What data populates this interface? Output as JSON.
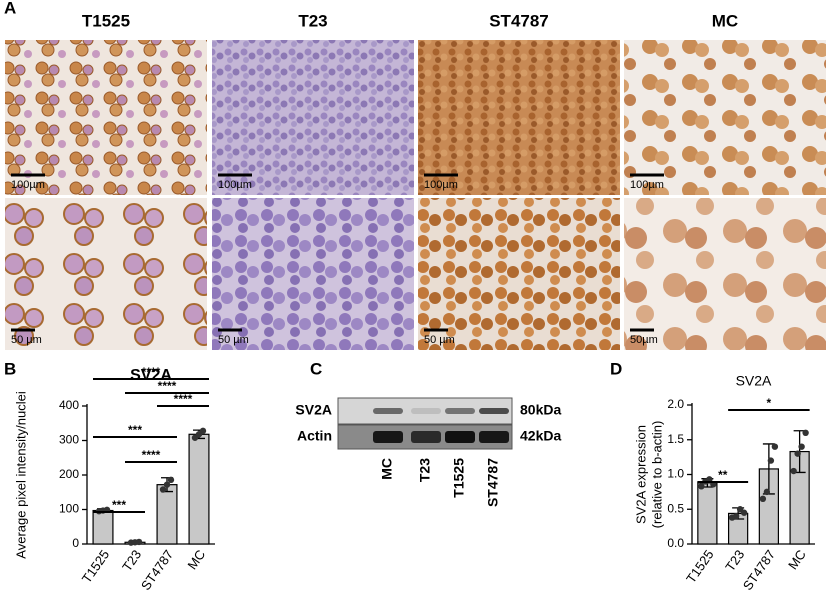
{
  "panel_labels": [
    "A",
    "B",
    "C",
    "D"
  ],
  "images": {
    "columns": [
      "T1525",
      "T23",
      "ST4787",
      "MC"
    ],
    "scale_bars": [
      [
        "100µm",
        "100µm",
        "100µm",
        "100µm"
      ],
      [
        "50 µm",
        "50 µm",
        "50 µm",
        "50µm"
      ]
    ]
  },
  "blot": {
    "rows": [
      {
        "name": "SV2A",
        "size": "80kDa"
      },
      {
        "name": "Actin",
        "size": "42kDa"
      }
    ],
    "lanes": [
      "MC",
      "T23",
      "T1525",
      "ST4787"
    ]
  },
  "chart_data": [
    {
      "type": "bar",
      "title": "SV2A",
      "ylabel": [
        "Average pixel intensity/nuclei"
      ],
      "categories": [
        "T1525",
        "T23",
        "ST4787",
        "MC"
      ],
      "values": [
        97,
        5,
        172,
        318
      ],
      "errors": [
        5,
        2,
        20,
        12
      ],
      "points": [
        [
          95,
          97,
          99
        ],
        [
          4,
          5,
          6
        ],
        [
          158,
          172,
          186
        ],
        [
          308,
          318,
          328
        ]
      ],
      "color": "#c8c8c8",
      "ylim": [
        0,
        400
      ],
      "yticks": [
        0,
        100,
        200,
        300,
        400
      ],
      "significance": [
        {
          "between": [
            "T1525",
            "T23"
          ],
          "label": "***"
        },
        {
          "between": [
            "T23",
            "ST4787"
          ],
          "label": "****"
        },
        {
          "between": [
            "ST4787",
            "MC"
          ],
          "label": "****"
        },
        {
          "between": [
            "T1525",
            "ST4787"
          ],
          "label": "***"
        },
        {
          "between": [
            "T23",
            "MC"
          ],
          "label": "****"
        },
        {
          "between": [
            "T1525",
            "MC"
          ],
          "label": "****"
        }
      ]
    },
    {
      "type": "bar",
      "title": "SV2A",
      "ylabel": [
        "SV2A expression",
        "(relative to b-actin)"
      ],
      "categories": [
        "T1525",
        "T23",
        "ST4787",
        "MC"
      ],
      "values": [
        0.88,
        0.44,
        1.08,
        1.33
      ],
      "errors": [
        0.06,
        0.08,
        0.36,
        0.3
      ],
      "points": [
        [
          0.83,
          0.9,
          0.93,
          0.86
        ],
        [
          0.38,
          0.4,
          0.5,
          0.45
        ],
        [
          0.65,
          0.75,
          1.2,
          1.4
        ],
        [
          1.05,
          1.3,
          1.4,
          1.6
        ]
      ],
      "color": "#c8c8c8",
      "ylim": [
        0,
        2.0
      ],
      "yticks": [
        {
          "value": 0,
          "label": "0.0"
        },
        0.5,
        {
          "value": 1,
          "label": "1.0"
        },
        1.5,
        {
          "value": 2,
          "label": "2.0"
        }
      ],
      "significance": [
        {
          "between": [
            "T1525",
            "T23"
          ],
          "label": "**"
        },
        {
          "between": [
            "T23",
            "MC"
          ],
          "label": "*"
        }
      ]
    }
  ]
}
